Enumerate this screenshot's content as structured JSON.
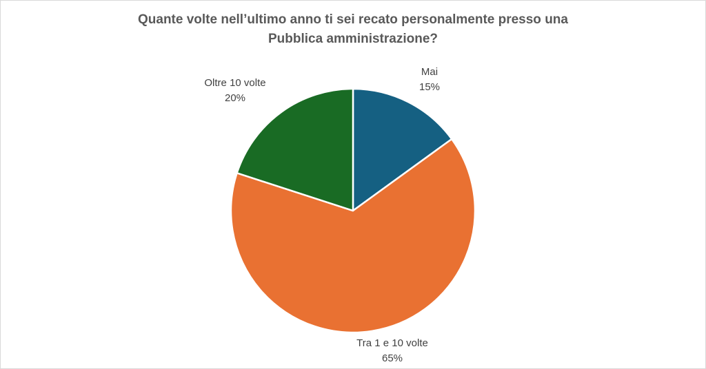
{
  "chart_data": {
    "type": "pie",
    "title_lines": [
      "Quante volte nell’ultimo anno ti sei recato personalmente presso una",
      "Pubblica amministrazione?"
    ],
    "categories": [
      "Mai",
      "Tra 1 e 10 volte",
      "Oltre 10 volte"
    ],
    "values": [
      15,
      65,
      20
    ],
    "value_labels": [
      "15%",
      "65%",
      "20%"
    ],
    "colors": [
      "#156082",
      "#E97132",
      "#196B24"
    ],
    "start_angle": "12 o'clock",
    "direction": "clockwise",
    "legend": "none",
    "slice_border_color": "#ffffff"
  }
}
